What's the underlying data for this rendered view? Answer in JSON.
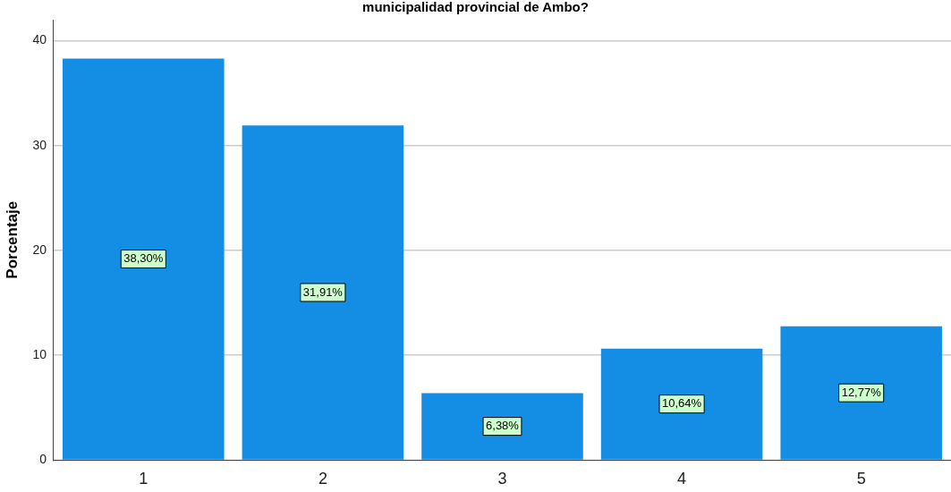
{
  "chart_data": {
    "type": "bar",
    "title": "municipalidad provincial de Ambo?",
    "ylabel": "Porcentaje",
    "categories": [
      "1",
      "2",
      "3",
      "4",
      "5"
    ],
    "values": [
      38.3,
      31.91,
      6.38,
      10.64,
      12.77
    ],
    "value_labels": [
      "38,30%",
      "31,91%",
      "6,38%",
      "10,64%",
      "12,77%"
    ],
    "color": "#148ee4",
    "ylim": [
      0,
      42
    ],
    "yticks": [
      0,
      10,
      20,
      30,
      40
    ],
    "grid": "y",
    "legend": false
  }
}
